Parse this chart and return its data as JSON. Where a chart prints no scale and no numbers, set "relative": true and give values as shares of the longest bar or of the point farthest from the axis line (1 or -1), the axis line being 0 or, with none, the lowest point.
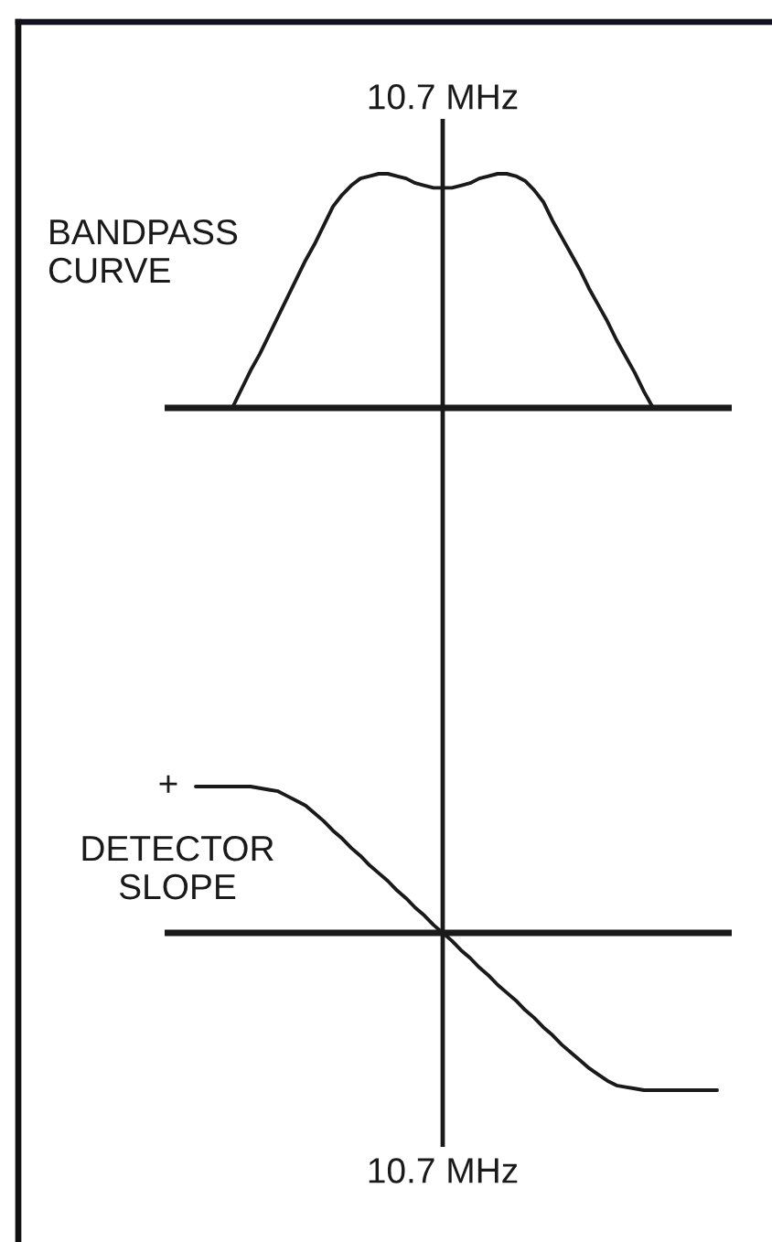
{
  "chart_data": [
    {
      "type": "line",
      "relative": true,
      "categories": [
        null,
        null,
        null,
        null,
        null,
        null,
        null,
        null,
        null,
        null,
        null,
        null,
        null,
        null,
        null,
        null,
        null,
        null,
        null,
        null,
        null,
        null,
        null,
        null,
        null,
        null,
        null,
        null,
        null,
        null,
        null,
        null,
        null,
        null,
        null,
        null,
        null,
        null,
        null,
        null,
        null,
        null,
        null,
        null,
        null,
        null,
        null,
        null,
        null,
        null,
        null,
        null,
        null,
        null,
        null,
        null,
        null,
        null,
        null,
        null,
        null
      ],
      "series": [
        {
          "name": "BANDPASS\nCURVE",
          "color": "#1a1a1a",
          "values": [
            null,
            null,
            null,
            null,
            null,
            null,
            null,
            0,
            0.08,
            0.16,
            0.23,
            0.31,
            0.39,
            0.47,
            0.55,
            0.63,
            0.7,
            0.78,
            0.86,
            0.91,
            0.95,
            0.98,
            0.99,
            1,
            1,
            0.99,
            0.98,
            0.96,
            0.95,
            0.94,
            0.94,
            0.94,
            0.95,
            0.96,
            0.98,
            0.99,
            1,
            1,
            0.99,
            0.97,
            0.93,
            0.88,
            0.8,
            0.73,
            0.66,
            0.59,
            0.51,
            0.44,
            0.37,
            0.29,
            0.22,
            0.15,
            0.07,
            0,
            null,
            null,
            null,
            null,
            null,
            null,
            null
          ]
        }
      ],
      "annotations": [
        "10.7 MHz"
      ]
    },
    {
      "type": "line",
      "relative": true,
      "categories": [
        null,
        null,
        null,
        null,
        null,
        null,
        null,
        null,
        null,
        null,
        null,
        null,
        null,
        null,
        null,
        null,
        null,
        null,
        null,
        null,
        null,
        null,
        null,
        null,
        null,
        null,
        null,
        null,
        null,
        null,
        null,
        null,
        null,
        null,
        null,
        null,
        null,
        null,
        null,
        null,
        null,
        null,
        null,
        null,
        null,
        null,
        null,
        null,
        null,
        null,
        null,
        null,
        null,
        null,
        null,
        null,
        null,
        null,
        null,
        null,
        null
      ],
      "series": [
        {
          "name": "DETECTOR\nSLOPE",
          "color": "#1a1a1a",
          "values": [
            null,
            null,
            null,
            0.93,
            0.93,
            0.93,
            0.93,
            0.93,
            0.93,
            0.93,
            0.92,
            0.91,
            0.9,
            0.87,
            0.84,
            0.81,
            0.76,
            0.71,
            0.65,
            0.6,
            0.54,
            0.49,
            0.43,
            0.38,
            0.33,
            0.27,
            0.22,
            0.16,
            0.11,
            0.05,
            0,
            -0.05,
            -0.11,
            -0.16,
            -0.22,
            -0.27,
            -0.33,
            -0.38,
            -0.43,
            -0.49,
            -0.54,
            -0.6,
            -0.65,
            -0.71,
            -0.76,
            -0.81,
            -0.86,
            -0.9,
            -0.94,
            -0.97,
            -0.98,
            -0.99,
            -1,
            -1,
            -1,
            -1,
            -1,
            -1,
            -1,
            -1,
            -1
          ]
        }
      ],
      "annotations": [
        "+",
        "10.7 MHz"
      ]
    }
  ]
}
